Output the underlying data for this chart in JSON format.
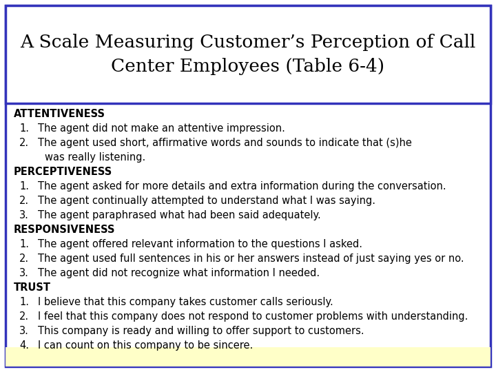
{
  "title_line1": "A Scale Measuring Customer’s Perception of Call",
  "title_line2": "Center Employees (Table 6-4)",
  "title_fontsize": 19,
  "body_fontsize": 10.5,
  "bg_color": "#ffffff",
  "border_color": "#3333bb",
  "bottom_color": "#ffffc8",
  "fig_width": 7.2,
  "fig_height": 5.4,
  "dpi": 100,
  "sections": [
    {
      "header": "ATTENTIVENESS",
      "items": [
        [
          "1.",
          "The agent did not make an attentive impression."
        ],
        [
          "2.",
          "The agent used short, affirmative words and sounds to indicate that (s)he\n    was really listening."
        ]
      ]
    },
    {
      "header": "PERCEPTIVENESS",
      "items": [
        [
          "1.",
          "The agent asked for more details and extra information during the conversation."
        ],
        [
          "2.",
          "The agent continually attempted to understand what I was saying."
        ],
        [
          "3.",
          "The agent paraphrased what had been said adequately."
        ]
      ]
    },
    {
      "header": "RESPONSIVENESS",
      "items": [
        [
          "1.",
          "The agent offered relevant information to the questions I asked."
        ],
        [
          "2.",
          "The agent used full sentences in his or her answers instead of just saying yes or no."
        ],
        [
          "3.",
          "The agent did not recognize what information I needed."
        ]
      ]
    },
    {
      "header": "TRUST",
      "items": [
        [
          "1.",
          "I believe that this company takes customer calls seriously."
        ],
        [
          "2.",
          "I feel that this company does not respond to customer problems with understanding."
        ],
        [
          "3.",
          "This company is ready and willing to offer support to customers."
        ],
        [
          "4.",
          "I can count on this company to be sincere."
        ]
      ]
    }
  ]
}
